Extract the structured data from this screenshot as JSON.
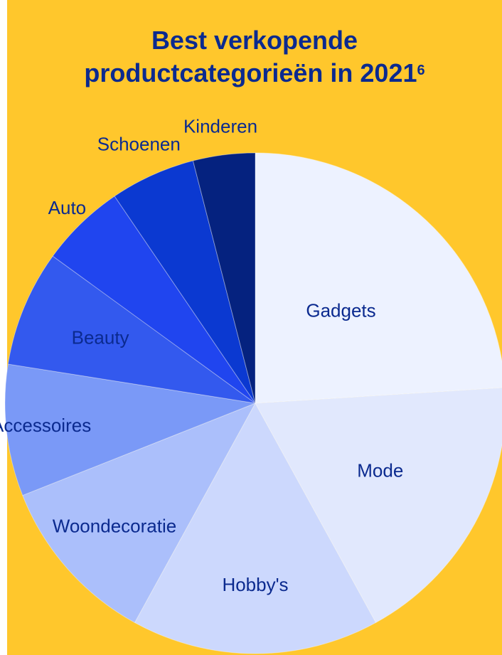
{
  "colors": {
    "background": "#ffc72c",
    "text": "#0b2a8f",
    "label_light": "#ffffff"
  },
  "title": {
    "line1": "Best verkopende",
    "line2": "productcategorieën in 2021",
    "footnote": "6"
  },
  "chart_data": {
    "type": "pie",
    "title": "Best verkopende productcategorieën in 2021",
    "start": "12 o'clock",
    "direction": "clockwise",
    "slices": [
      {
        "label": "Gadgets",
        "value": 24,
        "color": "#edf2ff"
      },
      {
        "label": "Mode",
        "value": 18,
        "color": "#e1e8fd"
      },
      {
        "label": "Hobby's",
        "value": 16,
        "color": "#ccd8fd"
      },
      {
        "label": "Woondecoratie",
        "value": 11,
        "color": "#abbffb"
      },
      {
        "label": "Accessoires",
        "value": 8.5,
        "color": "#7a99f7"
      },
      {
        "label": "Beauty",
        "value": 7.5,
        "color": "#3359ee"
      },
      {
        "label": "Auto",
        "value": 5.5,
        "color": "#2045ef"
      },
      {
        "label": "Schoenen",
        "value": 5.5,
        "color": "#0b39d1"
      },
      {
        "label": "Kinderen",
        "value": 4,
        "color": "#05227f"
      }
    ]
  }
}
